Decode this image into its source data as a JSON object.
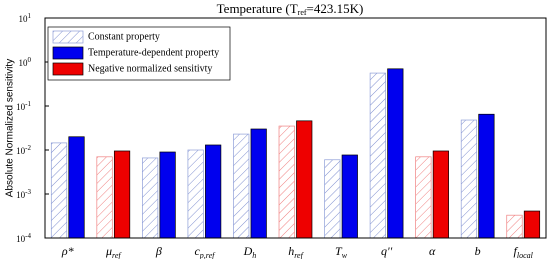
{
  "chart_data": {
    "type": "bar",
    "title": {
      "text": "Temperature (T",
      "sub": "ref",
      "tail": "=423.15K)"
    },
    "y_label": "Absolute Normalized sensitivity",
    "categories": [
      {
        "base": "ρ*"
      },
      {
        "base": "μ",
        "sub": "ref"
      },
      {
        "base": "β"
      },
      {
        "base": "c",
        "sub": "p,ref"
      },
      {
        "base": "D",
        "sub": "h"
      },
      {
        "base": "h",
        "sub": "ref"
      },
      {
        "base": "T",
        "sub": "w"
      },
      {
        "base": "q''"
      },
      {
        "base": "α"
      },
      {
        "base": "b"
      },
      {
        "base": "f",
        "sub": "local"
      }
    ],
    "series": [
      {
        "name": "Constant property",
        "color": "#6f7fc8",
        "pattern": "hatch",
        "values": [
          0.0145,
          0.007,
          0.0066,
          0.01,
          0.023,
          0.035,
          0.006,
          0.56,
          0.007,
          0.048,
          0.00033
        ]
      },
      {
        "name": "Temperature-dependent property",
        "color": "#0000ee",
        "pattern": "solid",
        "values": [
          0.02,
          0.0095,
          0.009,
          0.013,
          0.03,
          0.046,
          0.0077,
          0.7,
          0.0095,
          0.065,
          0.00041
        ]
      }
    ],
    "negative": [
      false,
      true,
      false,
      false,
      false,
      true,
      false,
      false,
      true,
      false,
      true
    ],
    "negative_label": "Negative normalized sensitivty",
    "negative_color": "#ee0000",
    "log_scale": true,
    "ylim": [
      0.0001,
      10
    ],
    "yticks": [
      {
        "value": 0.0001,
        "label": "10",
        "exp": "-4"
      },
      {
        "value": 0.001,
        "label": "10",
        "exp": "-3"
      },
      {
        "value": 0.01,
        "label": "10",
        "exp": "-2"
      },
      {
        "value": 0.1,
        "label": "10",
        "exp": "-1"
      },
      {
        "value": 1,
        "label": "10",
        "exp": "0"
      },
      {
        "value": 10,
        "label": "10",
        "exp": "1"
      }
    ],
    "grid": false,
    "legend_position": "upper left"
  }
}
